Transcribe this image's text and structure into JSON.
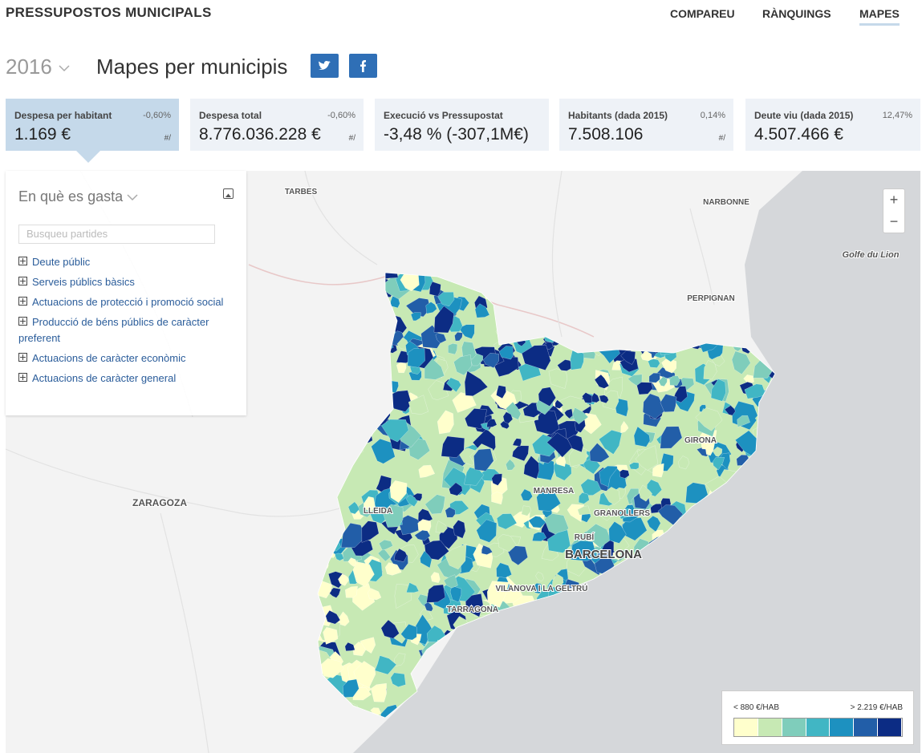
{
  "header": {
    "title": "PRESSUPOSTOS MUNICIPALS",
    "nav": [
      "COMPAREU",
      "RÀNQUINGS",
      "MAPES"
    ]
  },
  "page": {
    "year": "2016",
    "title": "Mapes per municipis"
  },
  "cards": [
    {
      "label": "Despesa per habitant",
      "change": "-0,60%",
      "value": "1.169 €",
      "link": "#/"
    },
    {
      "label": "Despesa total",
      "change": "-0,60%",
      "value": "8.776.036.228 €",
      "link": "#/"
    },
    {
      "label": "Execució vs Pressupostat",
      "value": "-3,48 % (-307,1M€)"
    },
    {
      "label": "Habitants (dada 2015)",
      "change": "0,14%",
      "value": "7.508.106",
      "link": "#/"
    },
    {
      "label": "Deute viu (dada 2015)",
      "change": "12,47%",
      "value": "4.507.466 €"
    }
  ],
  "panel": {
    "title": "En què es gasta",
    "search_placeholder": "Busqueu partides",
    "items": [
      "Deute públic",
      "Serveis públics bàsics",
      "Actuacions de protecció i promoció social",
      "Producció de béns públics de caràcter preferent",
      "Actuacions de caràcter econòmic",
      "Actuacions de caràcter general"
    ]
  },
  "map": {
    "labels": [
      "TARBES",
      "NARBONNE",
      "Golfe du Lion",
      "PERPIGNAN",
      "ZARAGOZA",
      "LLEIDA",
      "MANRESA",
      "GIRONA",
      "GRANOLLERS",
      "RUBÍ",
      "BARCELONA",
      "VILANOVA I LA GELTRÚ",
      "TARRAGONA"
    ],
    "zoom": [
      "+",
      "−"
    ]
  },
  "legend": {
    "min_label": "< 880 €/HAB",
    "max_label": "> 2.219 €/HAB",
    "colors": [
      "#ffffcc",
      "#c7e9b4",
      "#7fcdbb",
      "#41b6c4",
      "#1d91c0",
      "#225ea8",
      "#0c2c84"
    ]
  }
}
